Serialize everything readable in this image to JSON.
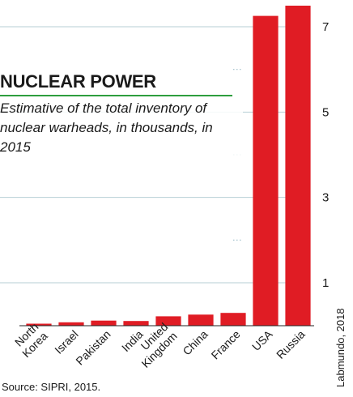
{
  "header": {
    "title": "NUCLEAR POWER",
    "subtitle": "Estimative of the total inventory of nuclear warheads, in thousands, in 2015"
  },
  "footer": {
    "source": "Source: SIPRI, 2015.",
    "credit": "Labmundo, 2018"
  },
  "colors": {
    "bar": "#e01c24",
    "grid_solid": "#b7cfd6",
    "grid_dotted": "#9fbfc9",
    "title_rule": "#2e9e3e",
    "baseline": "#222222"
  },
  "chart_data": {
    "type": "bar",
    "title": "NUCLEAR POWER",
    "categories": [
      [
        "North",
        "Korea"
      ],
      [
        "Israel"
      ],
      [
        "Pakistan"
      ],
      [
        "India"
      ],
      [
        "United",
        "Kingdom"
      ],
      [
        "China"
      ],
      [
        "France"
      ],
      [
        "USA"
      ],
      [
        "Russia"
      ]
    ],
    "values": [
      0.01,
      0.08,
      0.12,
      0.11,
      0.22,
      0.26,
      0.3,
      7.26,
      7.5
    ],
    "ylim": [
      0,
      7.5
    ],
    "y_ticks": [
      1,
      3,
      5,
      7
    ],
    "y_minor_ticks": [
      2,
      4,
      6
    ],
    "axis_position": "right",
    "grid": true,
    "xlabel": "",
    "ylabel": ""
  }
}
